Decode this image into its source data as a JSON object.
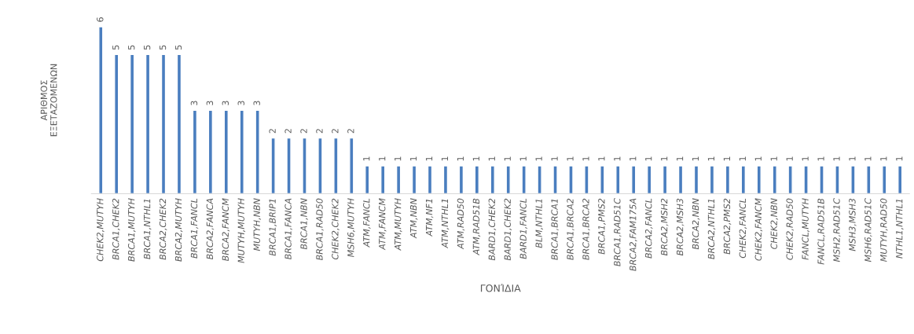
{
  "chart_data": {
    "type": "bar",
    "xlabel": "ΓΟΝΊΔΙΑ",
    "ylabel": "ΑΡΙΘΜΟΣ\nΕΞΕΤΑΖΟΜΕΝΩΝ",
    "color": "#4a7ebf",
    "data_labels": true,
    "grid": false,
    "legend": false,
    "categories": [
      "CHEK2,MUTYH",
      "BRCA1,CHEK2",
      "BRCA1,MUTYH",
      "BRCA1,NTHL1",
      "BRCA2,CHEK2",
      "BRCA2,MUTYH",
      "BRCA1,FANCL",
      "BRCA2,FANCA",
      "BRCA2,FANCM",
      "MUTYH,MUTYH",
      "MUTYH,NBN",
      "BRCA1,BRIP1",
      "BRCA1,FANCA",
      "BRCA1,NBN",
      "BRCA1,RAD50",
      "CHEK2,CHEK2",
      "MSH6,MUTYH",
      "ATM,FANCL",
      "ATM,FANCM",
      "ATM,MUTYH",
      "ATM,NBN",
      "ATM,NF1",
      "ATM,NTHL1",
      "ATM,RAD50",
      "ATM,RAD51B",
      "BARD1,CHEK2",
      "BARD1,CHEK2",
      "BARD1,FANCL",
      "BLM,NTHL1",
      "BRCA1,BRCA1",
      "BRCA1,BRCA2",
      "BRCA1,BRCA2",
      "BRCA1,PMS2",
      "BRCA1,RAD51C",
      "BRCA2,FAM175A",
      "BRCA2,FANCL",
      "BRCA2,MSH2",
      "BRCA2,MSH3",
      "BRCA2,NBN",
      "BRCA2,NTHL1",
      "BRCA2,PMS2",
      "CHEK2,FANCL",
      "CHEK2,FANCM",
      "CHEK2,NBN",
      "CHEK2,RAD50",
      "FANCL,MUTYH",
      "FANCL,RAD51B",
      "MSH2,RAD51C",
      "MSH3,MSH3",
      "MSH6,RAD51C",
      "MUTYH,RAD50",
      "NTHL1,NTHL1"
    ],
    "values": [
      6,
      5,
      5,
      5,
      5,
      5,
      3,
      3,
      3,
      3,
      3,
      2,
      2,
      2,
      2,
      2,
      2,
      1,
      1,
      1,
      1,
      1,
      1,
      1,
      1,
      1,
      1,
      1,
      1,
      1,
      1,
      1,
      1,
      1,
      1,
      1,
      1,
      1,
      1,
      1,
      1,
      1,
      1,
      1,
      1,
      1,
      1,
      1,
      1,
      1,
      1,
      1
    ]
  }
}
